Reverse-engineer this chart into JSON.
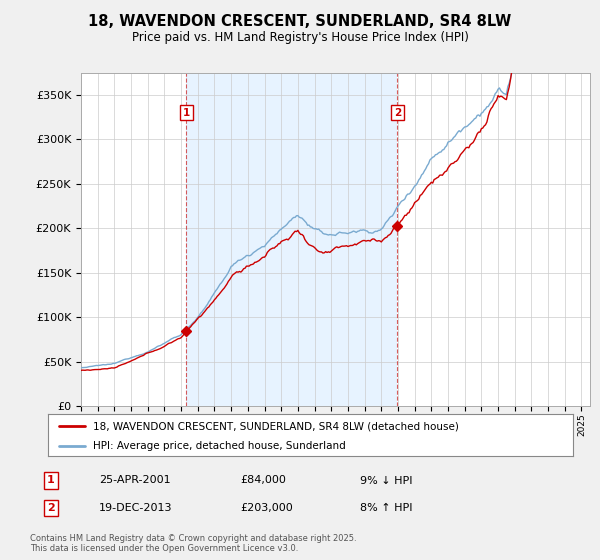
{
  "title": "18, WAVENDON CRESCENT, SUNDERLAND, SR4 8LW",
  "subtitle": "Price paid vs. HM Land Registry's House Price Index (HPI)",
  "ylim": [
    0,
    375000
  ],
  "xlim_start": 1995.0,
  "xlim_end": 2025.5,
  "purchase1_date": 2001.32,
  "purchase1_price": 84000,
  "purchase1_label": "1",
  "purchase2_date": 2013.97,
  "purchase2_price": 203000,
  "purchase2_label": "2",
  "legend_entry1": "18, WAVENDON CRESCENT, SUNDERLAND, SR4 8LW (detached house)",
  "legend_entry2": "HPI: Average price, detached house, Sunderland",
  "annotation1_date": "25-APR-2001",
  "annotation1_price": "£84,000",
  "annotation1_hpi": "9% ↓ HPI",
  "annotation2_date": "19-DEC-2013",
  "annotation2_price": "£203,000",
  "annotation2_hpi": "8% ↑ HPI",
  "line_color_property": "#cc0000",
  "line_color_hpi": "#7aaad0",
  "shade_color": "#ddeeff",
  "footer": "Contains HM Land Registry data © Crown copyright and database right 2025.\nThis data is licensed under the Open Government Licence v3.0.",
  "background_color": "#f0f0f0",
  "plot_bg_color": "#ffffff"
}
